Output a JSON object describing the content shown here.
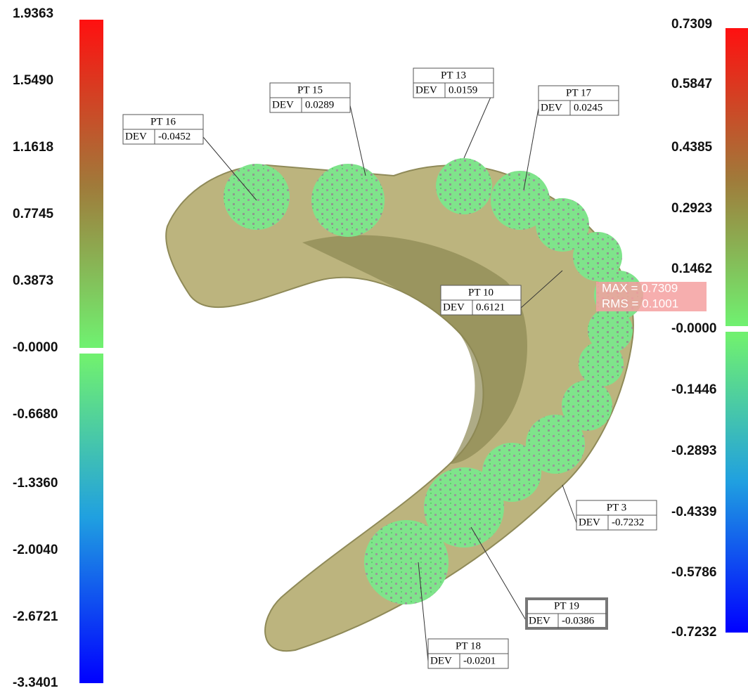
{
  "left_scale": {
    "labels": [
      "1.9363",
      "1.5490",
      "1.1618",
      "0.7745",
      "0.3873",
      "-0.0000",
      "-0.6680",
      "-1.3360",
      "-2.0040",
      "-2.6721",
      "-3.3401"
    ]
  },
  "right_scale": {
    "labels": [
      "0.7309",
      "0.5847",
      "0.4385",
      "0.2923",
      "0.1462",
      "-0.0000",
      "-0.1446",
      "-0.2893",
      "-0.4339",
      "-0.5786",
      "-0.7232"
    ]
  },
  "points": [
    {
      "label": "PT 16",
      "dev_label": "DEV",
      "dev": "-0.0452"
    },
    {
      "label": "PT 15",
      "dev_label": "DEV",
      "dev": "0.0289"
    },
    {
      "label": "PT 13",
      "dev_label": "DEV",
      "dev": "0.0159"
    },
    {
      "label": "PT 17",
      "dev_label": "DEV",
      "dev": "0.0245"
    },
    {
      "label": "PT 10",
      "dev_label": "DEV",
      "dev": "0.6121"
    },
    {
      "label": "PT 3",
      "dev_label": "DEV",
      "dev": "-0.7232"
    },
    {
      "label": "PT 19",
      "dev_label": "DEV",
      "dev": "-0.0386"
    },
    {
      "label": "PT 18",
      "dev_label": "DEV",
      "dev": "-0.0201"
    }
  ],
  "summary": {
    "max": "MAX = 0.7309",
    "rms": "RMS = 0.1001"
  }
}
